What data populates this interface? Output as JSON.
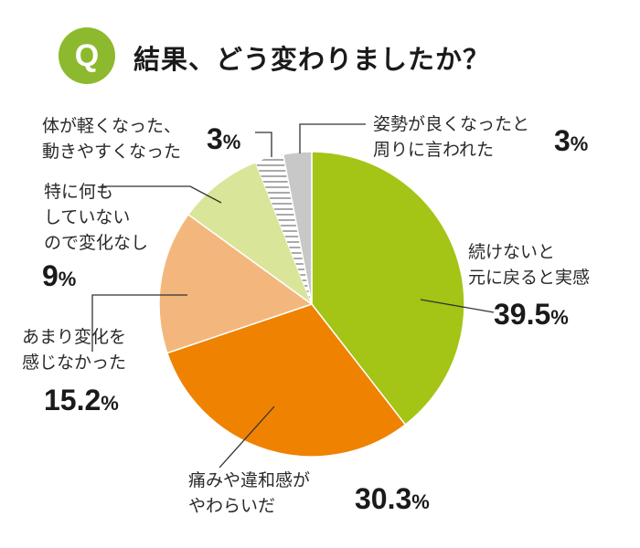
{
  "title": {
    "badge": "Q",
    "text": "結果、どう変わりましたか？"
  },
  "colors": {
    "badge": "#8db92e",
    "slices": [
      "#a4c416",
      "#ef8200",
      "#f3b77d",
      "#d9e598",
      "hatch",
      "#c8c8c8"
    ]
  },
  "chart_data": {
    "type": "pie",
    "start": "12 o'clock, clockwise",
    "slices": [
      {
        "label_lines": [
          "続けないと",
          "元に戻ると実感"
        ],
        "value": 39.5,
        "num": "39.5",
        "unit": "%"
      },
      {
        "label_lines": [
          "痛みや違和感が",
          "やわらいだ"
        ],
        "value": 30.3,
        "num": "30.3",
        "unit": "%"
      },
      {
        "label_lines": [
          "あまり変化を",
          "感じなかった"
        ],
        "value": 15.2,
        "num": "15.2",
        "unit": "%"
      },
      {
        "label_lines": [
          "特に何も",
          "していない",
          "ので変化なし"
        ],
        "value": 9,
        "num": "9",
        "unit": "%"
      },
      {
        "label_lines": [
          "体が軽くなった、",
          "動きやすくなった"
        ],
        "value": 3,
        "num": "3",
        "unit": "%"
      },
      {
        "label_lines": [
          "姿勢が良くなったと",
          "周りに言われた"
        ],
        "value": 3,
        "num": "3",
        "unit": "%"
      }
    ]
  }
}
